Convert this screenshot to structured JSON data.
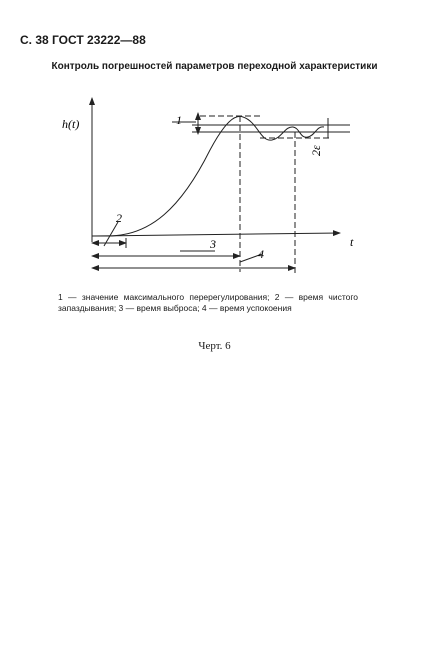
{
  "header": {
    "page": "С. 38 ГОСТ 23222—88"
  },
  "title": "Контроль погрешностей параметров переходной характеристики",
  "figure": {
    "y_axis_label": "h(t)",
    "x_axis_label": "t",
    "labels": [
      "1",
      "2",
      "3",
      "4",
      "2ε"
    ]
  },
  "caption": "1 — значение максимального перерегулирования; 2 — время чистого запаздывания; 3 — время выброса; 4 — время успокоения",
  "figure_number": "Черт. 6"
}
